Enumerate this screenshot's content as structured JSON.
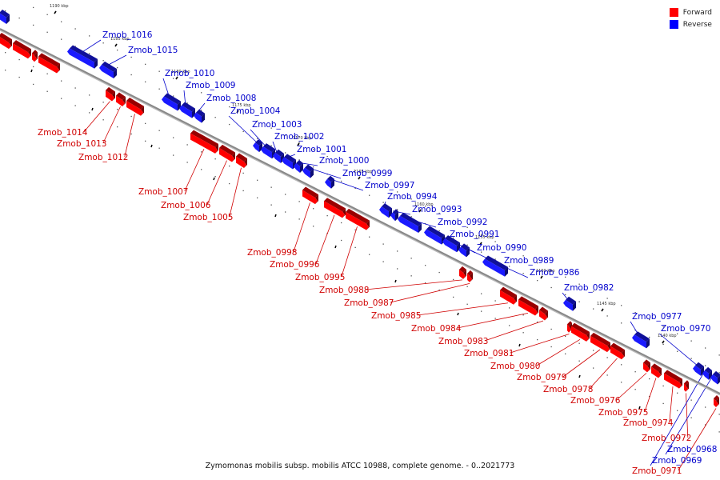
{
  "caption": "Zymomonas mobilis subsp. mobilis ATCC 10988, complete genome. - 0..2021773",
  "legend": [
    {
      "label": "Forward",
      "color": "#ff0000"
    },
    {
      "label": "Reverse",
      "color": "#0000ff"
    }
  ],
  "colors": {
    "forward": "#ff0000",
    "reverse": "#1a1aff",
    "forward_label": "#d00000",
    "reverse_label": "#0000cc",
    "backbone": "#888888"
  },
  "kbp_ticks": [
    "1190 kbp",
    "1185 kbp",
    "1180 kbp",
    "1175 kbp",
    "1170 kbp",
    "1165 kbp",
    "1160 kbp",
    "1155 kbp",
    "1150 kbp",
    "1145 kbp",
    "1140 kbp"
  ],
  "genes": [
    {
      "label": "Zmob_1016",
      "strand": "reverse"
    },
    {
      "label": "Zmob_1015",
      "strand": "reverse"
    },
    {
      "label": "Zmob_1014",
      "strand": "forward"
    },
    {
      "label": "Zmob_1013",
      "strand": "forward"
    },
    {
      "label": "Zmob_1012",
      "strand": "forward"
    },
    {
      "label": "Zmob_1010",
      "strand": "reverse"
    },
    {
      "label": "Zmob_1009",
      "strand": "reverse"
    },
    {
      "label": "Zmob_1008",
      "strand": "reverse"
    },
    {
      "label": "Zmob_1007",
      "strand": "forward"
    },
    {
      "label": "Zmob_1006",
      "strand": "forward"
    },
    {
      "label": "Zmob_1005",
      "strand": "forward"
    },
    {
      "label": "Zmob_1004",
      "strand": "reverse"
    },
    {
      "label": "Zmob_1003",
      "strand": "reverse"
    },
    {
      "label": "Zmob_1002",
      "strand": "reverse"
    },
    {
      "label": "Zmob_1001",
      "strand": "reverse"
    },
    {
      "label": "Zmob_1000",
      "strand": "reverse"
    },
    {
      "label": "Zmob_0999",
      "strand": "reverse"
    },
    {
      "label": "Zmob_0998",
      "strand": "forward"
    },
    {
      "label": "Zmob_0997",
      "strand": "reverse"
    },
    {
      "label": "Zmob_0996",
      "strand": "forward"
    },
    {
      "label": "Zmob_0995",
      "strand": "forward"
    },
    {
      "label": "Zmob_0994",
      "strand": "reverse"
    },
    {
      "label": "Zmob_0993",
      "strand": "reverse"
    },
    {
      "label": "Zmob_0992",
      "strand": "reverse"
    },
    {
      "label": "Zmob_0991",
      "strand": "reverse"
    },
    {
      "label": "Zmob_0990",
      "strand": "reverse"
    },
    {
      "label": "Zmob_0989",
      "strand": "reverse"
    },
    {
      "label": "Zmob_0988",
      "strand": "forward"
    },
    {
      "label": "Zmob_0987",
      "strand": "forward"
    },
    {
      "label": "Zmob_0986",
      "strand": "reverse"
    },
    {
      "label": "Zmob_0985",
      "strand": "forward"
    },
    {
      "label": "Zmob_0984",
      "strand": "forward"
    },
    {
      "label": "Zmob_0983",
      "strand": "forward"
    },
    {
      "label": "Zmob_0982",
      "strand": "reverse"
    },
    {
      "label": "Zmob_0981",
      "strand": "forward"
    },
    {
      "label": "Zmob_0980",
      "strand": "forward"
    },
    {
      "label": "Zmob_0979",
      "strand": "forward"
    },
    {
      "label": "Zmob_0978",
      "strand": "forward"
    },
    {
      "label": "Zmob_0977",
      "strand": "reverse"
    },
    {
      "label": "Zmob_0976",
      "strand": "forward"
    },
    {
      "label": "Zmob_0975",
      "strand": "forward"
    },
    {
      "label": "Zmob_0974",
      "strand": "forward"
    },
    {
      "label": "Zmob_0972",
      "strand": "forward"
    },
    {
      "label": "Zmob_0971",
      "strand": "forward"
    },
    {
      "label": "Zmob_0970",
      "strand": "reverse"
    },
    {
      "label": "Zmob_0969",
      "strand": "reverse"
    },
    {
      "label": "Zmob_0968",
      "strand": "reverse"
    }
  ]
}
